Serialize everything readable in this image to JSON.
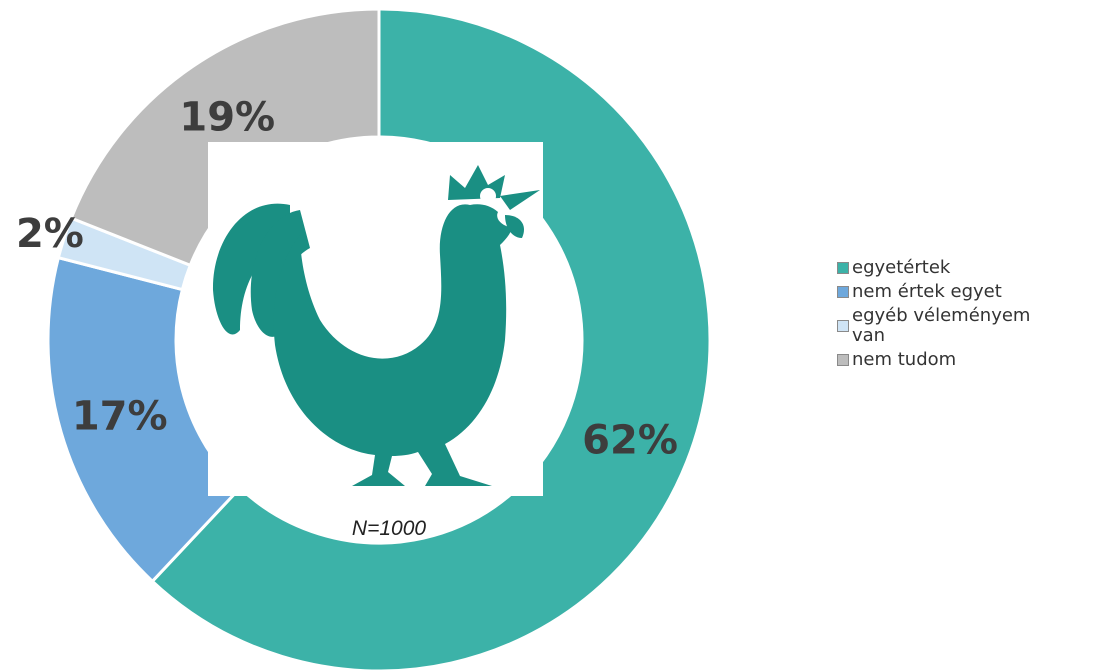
{
  "chart_data": {
    "type": "pie",
    "donut": true,
    "slices": [
      {
        "label": "egyetértek",
        "value": 62,
        "display": "62%",
        "color": "#3cb2a8"
      },
      {
        "label": "nem értek egyet",
        "value": 17,
        "display": "17%",
        "color": "#6ea8dc"
      },
      {
        "label": "egyéb véleményem van",
        "value": 2,
        "display": "2%",
        "color": "#cfe4f5"
      },
      {
        "label": "nem tudom",
        "value": 19,
        "display": "19%",
        "color": "#bdbdbd"
      }
    ],
    "start": "top",
    "direction": "clockwise",
    "legend_position": "right",
    "annotation": "N=1000",
    "center_icon": "rooster-icon",
    "center_icon_color": "#1a8f83"
  }
}
